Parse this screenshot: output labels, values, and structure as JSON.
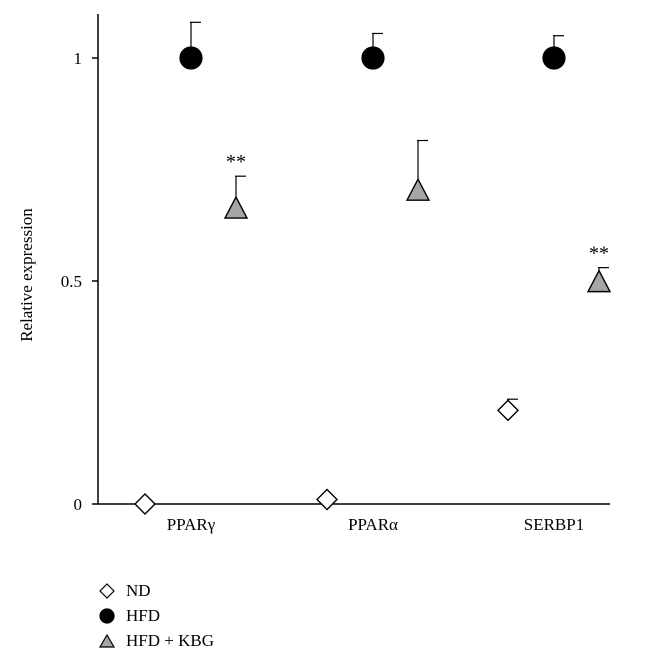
{
  "chart_data": {
    "type": "scatter",
    "title": "",
    "xlabel": "",
    "ylabel": "Relative expression",
    "categories": [
      "PPARγ",
      "PPARα",
      "SERBP1"
    ],
    "ylim": [
      0,
      1.1
    ],
    "yticks": [
      {
        "value": 0,
        "label": "0"
      },
      {
        "value": 0.5,
        "label": "0.5"
      },
      {
        "value": 1,
        "label": "1"
      }
    ],
    "grid": false,
    "legend_position": "bottom-left",
    "series": [
      {
        "name": "ND",
        "marker": "diamond",
        "fill": "#ffffff",
        "stroke": "#000000",
        "values": [
          0.0,
          0.01,
          0.21
        ],
        "errors": [
          0,
          0,
          0.025
        ],
        "annotations": [
          "",
          "",
          ""
        ]
      },
      {
        "name": "HFD",
        "marker": "circle",
        "fill": "#000000",
        "stroke": "#000000",
        "values": [
          1.0,
          1.0,
          1.0
        ],
        "errors": [
          0.08,
          0.055,
          0.05
        ],
        "annotations": [
          "",
          "",
          ""
        ]
      },
      {
        "name": "HFD + KBG",
        "marker": "triangle",
        "fill": "#a6a6a6",
        "stroke": "#000000",
        "values": [
          0.66,
          0.7,
          0.495
        ],
        "errors": [
          0.075,
          0.115,
          0.035
        ],
        "annotations": [
          "**",
          "",
          "**"
        ]
      }
    ]
  }
}
